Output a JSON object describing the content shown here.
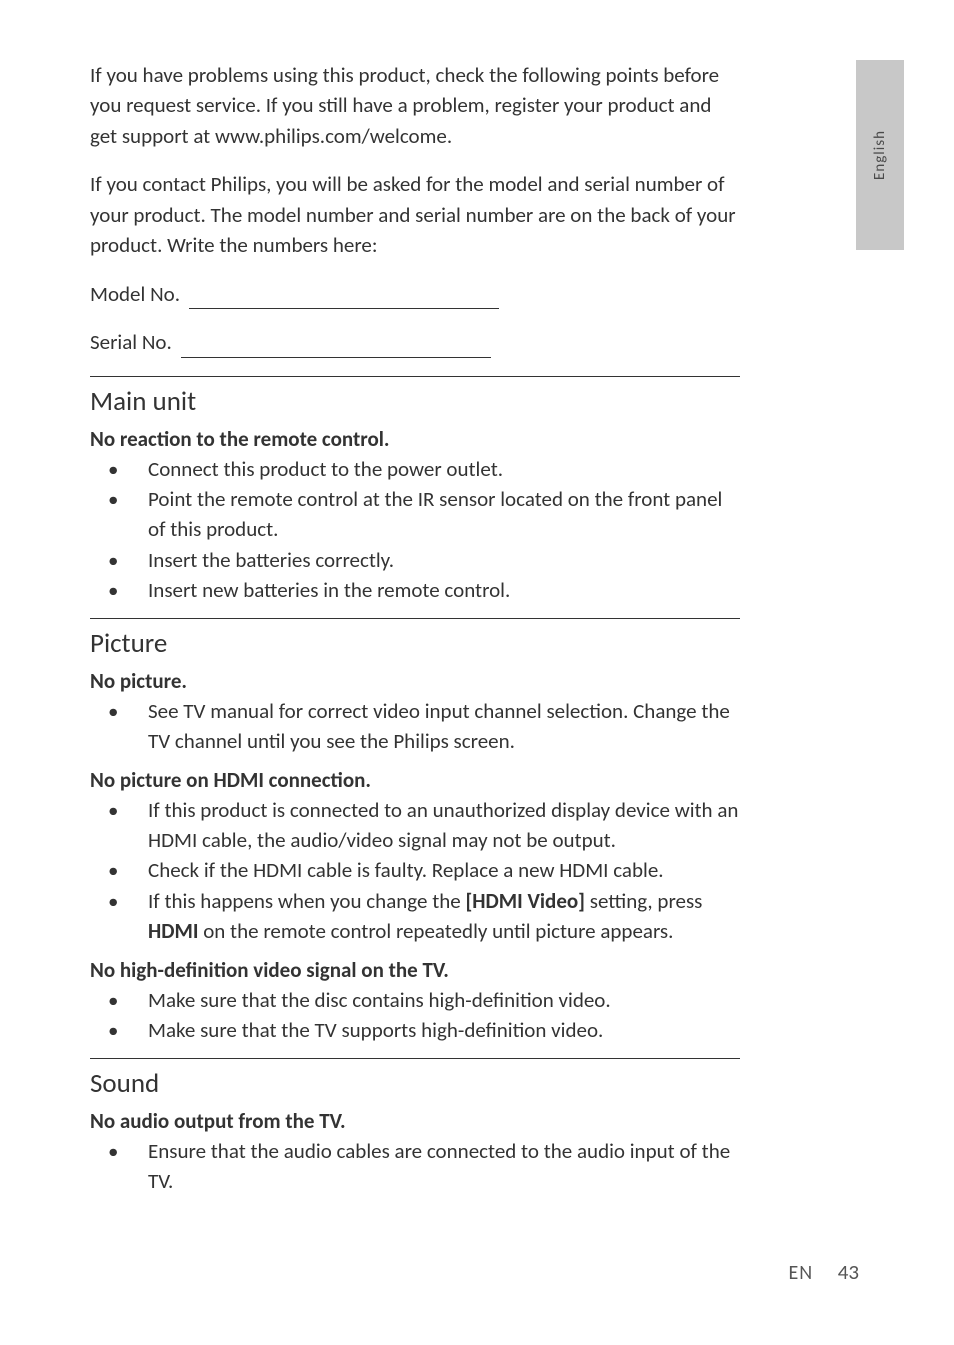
{
  "side_tab": "English",
  "intro_p1": "If you have problems using this product, check the following points before you request service. If you still have a problem, register your product and get support at www.philips.com/welcome.",
  "intro_p2": "If you contact Philips, you will be asked for the model and serial number of your product. The model number and serial number are on the back of your product. Write the numbers here:",
  "model_label": "Model No.",
  "serial_label": "Serial No.",
  "sections": {
    "main_unit": {
      "title": "Main unit",
      "sub1": "No reaction to the remote control.",
      "items1": [
        "Connect this product to the power outlet.",
        "Point the remote control at the IR sensor located on the front panel of this product.",
        "Insert the batteries correctly.",
        "Insert new batteries in the remote control."
      ]
    },
    "picture": {
      "title": "Picture",
      "sub1": "No picture.",
      "items1": [
        "See TV manual for correct video input channel selection. Change the TV channel until you see the Philips screen."
      ],
      "sub2": "No picture on HDMI connection.",
      "items2": [
        "If this product is connected to an unauthorized display device with an HDMI cable, the audio/video signal may not be output.",
        "Check if the HDMI cable is faulty. Replace a new HDMI cable."
      ],
      "item3_pre": "If this happens when you change the ",
      "item3_bold1": "[HDMI Video]",
      "item3_mid": " setting, press ",
      "item3_bold2": "HDMI",
      "item3_post": " on the remote control repeatedly until picture appears.",
      "sub3": "No high-definition video signal on the TV.",
      "items3": [
        "Make sure that the disc contains high-definition video.",
        "Make sure that the TV supports high-definition video."
      ]
    },
    "sound": {
      "title": "Sound",
      "sub1": "No audio output from the TV.",
      "items1": [
        "Ensure that the audio cables are connected to the audio input of the TV."
      ]
    }
  },
  "footer_lang": "EN",
  "footer_page": "43",
  "colors": {
    "tab_bg": "#c8c8c8",
    "text": "#333333",
    "rule": "#333333"
  }
}
